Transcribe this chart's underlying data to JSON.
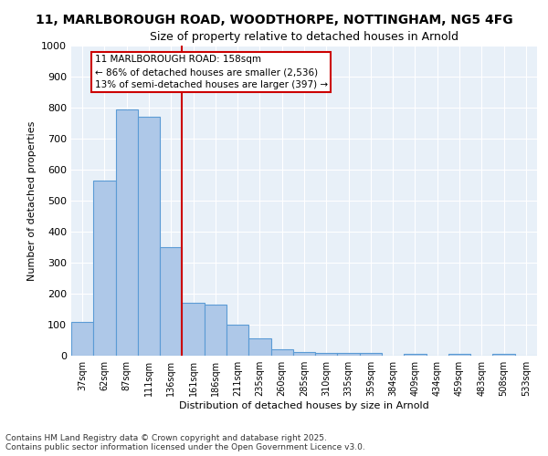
{
  "title_line1": "11, MARLBOROUGH ROAD, WOODTHORPE, NOTTINGHAM, NG5 4FG",
  "title_line2": "Size of property relative to detached houses in Arnold",
  "xlabel": "Distribution of detached houses by size in Arnold",
  "ylabel": "Number of detached properties",
  "categories": [
    "37sqm",
    "62sqm",
    "87sqm",
    "111sqm",
    "136sqm",
    "161sqm",
    "186sqm",
    "211sqm",
    "235sqm",
    "260sqm",
    "285sqm",
    "310sqm",
    "335sqm",
    "359sqm",
    "384sqm",
    "409sqm",
    "434sqm",
    "459sqm",
    "483sqm",
    "508sqm",
    "533sqm"
  ],
  "values": [
    110,
    565,
    795,
    770,
    350,
    170,
    165,
    100,
    55,
    20,
    13,
    10,
    10,
    10,
    0,
    5,
    0,
    5,
    0,
    5,
    0
  ],
  "bar_color": "#aec8e8",
  "bar_edge_color": "#5b9bd5",
  "property_size": "158sqm",
  "property_line_x": 4.5,
  "annotation_text_line1": "11 MARLBOROUGH ROAD: 158sqm",
  "annotation_text_line2": "← 86% of detached houses are smaller (2,536)",
  "annotation_text_line3": "13% of semi-detached houses are larger (397) →",
  "annotation_box_color": "#ffffff",
  "annotation_box_edge_color": "#cc0000",
  "red_line_color": "#cc0000",
  "ylim": [
    0,
    1000
  ],
  "yticks": [
    0,
    100,
    200,
    300,
    400,
    500,
    600,
    700,
    800,
    900,
    1000
  ],
  "background_color": "#e8f0f8",
  "grid_color": "#ffffff",
  "footer_line1": "Contains HM Land Registry data © Crown copyright and database right 2025.",
  "footer_line2": "Contains public sector information licensed under the Open Government Licence v3.0."
}
